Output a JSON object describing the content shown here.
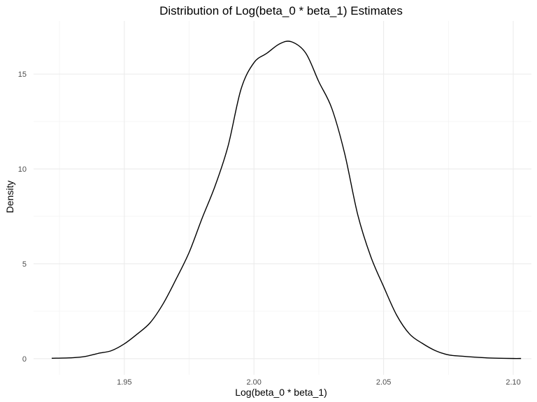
{
  "chart_data": {
    "type": "line",
    "title": "Distribution of Log(beta_0 * beta_1) Estimates",
    "xlabel": "Log(beta_0 * beta_1)",
    "ylabel": "Density",
    "xlim": [
      1.915,
      2.107
    ],
    "ylim": [
      -0.85,
      17.8
    ],
    "x_ticks": [
      1.95,
      2.0,
      2.05,
      2.1
    ],
    "x_tick_labels": [
      "1.95",
      "2.00",
      "2.05",
      "2.10"
    ],
    "y_ticks": [
      0,
      5,
      10,
      15
    ],
    "y_tick_labels": [
      "0",
      "5",
      "10",
      "15"
    ],
    "grid": true,
    "series": [
      {
        "color": "#000000",
        "x": [
          1.922,
          1.93,
          1.935,
          1.94,
          1.945,
          1.95,
          1.955,
          1.96,
          1.965,
          1.97,
          1.975,
          1.98,
          1.985,
          1.99,
          1.995,
          2.0,
          2.005,
          2.01,
          2.0145,
          2.02,
          2.025,
          2.03,
          2.035,
          2.04,
          2.045,
          2.05,
          2.055,
          2.06,
          2.065,
          2.07,
          2.075,
          2.08,
          2.085,
          2.09,
          2.095,
          2.1,
          2.103
        ],
        "y": [
          0.02,
          0.05,
          0.12,
          0.28,
          0.42,
          0.78,
          1.3,
          1.9,
          2.9,
          4.2,
          5.6,
          7.4,
          9.1,
          11.2,
          14.2,
          15.6,
          16.1,
          16.6,
          16.7,
          16.1,
          14.6,
          13.2,
          10.8,
          7.6,
          5.4,
          3.8,
          2.3,
          1.3,
          0.8,
          0.42,
          0.2,
          0.13,
          0.08,
          0.04,
          0.02,
          0.01,
          0.01
        ]
      }
    ]
  }
}
